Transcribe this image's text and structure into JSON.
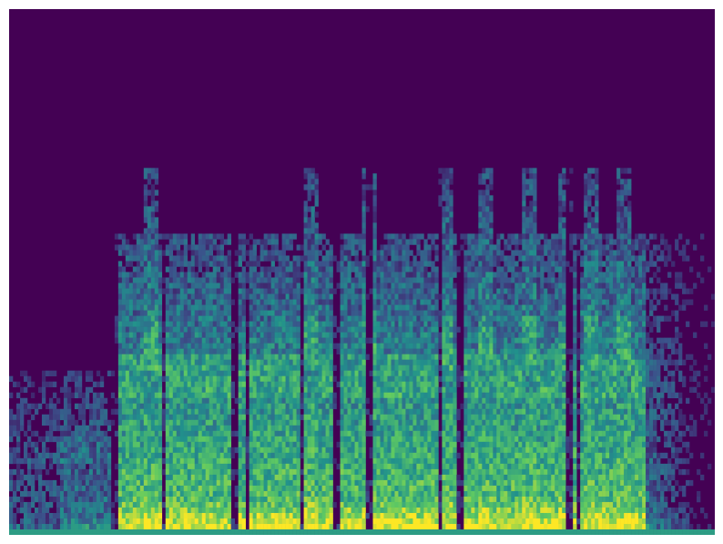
{
  "chart_data": {
    "type": "heatmap",
    "title": "",
    "xlabel": "",
    "ylabel": "",
    "axes_visible": false,
    "grid": false,
    "legend": "none",
    "colormap": "viridis",
    "colors": {
      "background": "#440154",
      "low": "#440154",
      "mid": "#21918c",
      "high": "#fde725"
    }
  }
}
